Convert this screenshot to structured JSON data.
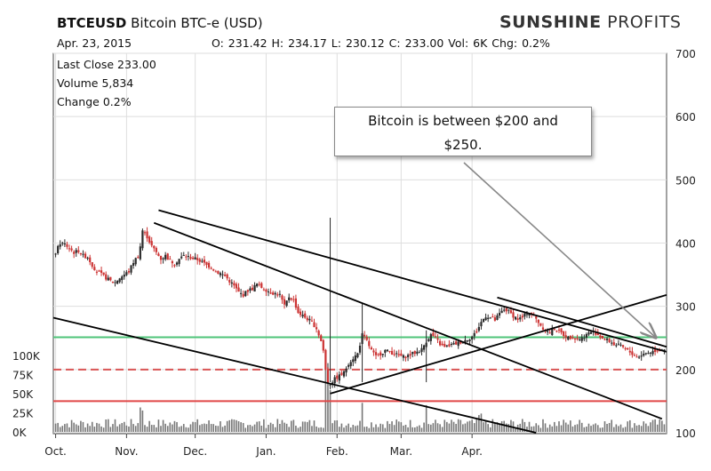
{
  "header": {
    "symbol": "BTCEUSD",
    "name": "Bitcoin BTC-e (USD)",
    "brand_bold": "SUNSHINE",
    "brand_light": "PROFITS",
    "date": "Apr. 23, 2015",
    "ohlc": "O: 231.42  H: 234.17  L: 230.12  C: 233.00  Vol: 6K  Chg: 0.2%"
  },
  "info": {
    "last_close": "Last Close 233.00",
    "volume": "Volume 5,834",
    "change": "Change 0.2%"
  },
  "callout": {
    "line1": "Bitcoin is between $200 and",
    "line2": "$250."
  },
  "chart_data": {
    "type": "candlestick",
    "x_tick_labels": [
      "Oct.",
      "Nov.",
      "Dec.",
      "Jan.",
      "Feb.",
      "Mar.",
      "Apr."
    ],
    "price_axis": {
      "ticks": [
        100,
        200,
        300,
        400,
        500,
        600,
        700
      ],
      "range": [
        100,
        700
      ]
    },
    "volume_axis": {
      "ticks": [
        "0K",
        "25K",
        "50K",
        "75K",
        "100K"
      ],
      "range": [
        0,
        100000
      ]
    },
    "grid": true,
    "horizontal_levels": [
      {
        "price": 251,
        "color": "#4fc47a",
        "style": "solid"
      },
      {
        "price": 200,
        "color": "#d95555",
        "style": "dashed"
      },
      {
        "price": 150,
        "color": "#e04848",
        "style": "solid"
      }
    ],
    "colors": {
      "up": "#2a2a2a",
      "down": "#cc3333",
      "volume": "#777777",
      "trendline": "#000000"
    },
    "close_series": [
      [
        0,
        385
      ],
      [
        2,
        400
      ],
      [
        4,
        398
      ],
      [
        6,
        392
      ],
      [
        8,
        385
      ],
      [
        10,
        388
      ],
      [
        12,
        380
      ],
      [
        14,
        378
      ],
      [
        16,
        365
      ],
      [
        18,
        355
      ],
      [
        20,
        350
      ],
      [
        22,
        345
      ],
      [
        24,
        340
      ],
      [
        26,
        338
      ],
      [
        28,
        345
      ],
      [
        30,
        350
      ],
      [
        32,
        355
      ],
      [
        34,
        370
      ],
      [
        36,
        380
      ],
      [
        37,
        395
      ],
      [
        38,
        420
      ],
      [
        40,
        410
      ],
      [
        42,
        395
      ],
      [
        44,
        385
      ],
      [
        46,
        375
      ],
      [
        48,
        380
      ],
      [
        50,
        372
      ],
      [
        52,
        368
      ],
      [
        54,
        375
      ],
      [
        56,
        380
      ],
      [
        58,
        378
      ],
      [
        60,
        376
      ],
      [
        62,
        374
      ],
      [
        64,
        370
      ],
      [
        66,
        365
      ],
      [
        68,
        362
      ],
      [
        70,
        355
      ],
      [
        72,
        352
      ],
      [
        74,
        348
      ],
      [
        76,
        340
      ],
      [
        78,
        332
      ],
      [
        80,
        322
      ],
      [
        82,
        318
      ],
      [
        84,
        325
      ],
      [
        86,
        328
      ],
      [
        88,
        335
      ],
      [
        90,
        330
      ],
      [
        92,
        326
      ],
      [
        94,
        322
      ],
      [
        96,
        320
      ],
      [
        98,
        318
      ],
      [
        100,
        300
      ],
      [
        102,
        315
      ],
      [
        104,
        310
      ],
      [
        106,
        290
      ],
      [
        108,
        285
      ],
      [
        110,
        280
      ],
      [
        112,
        275
      ],
      [
        114,
        265
      ],
      [
        116,
        245
      ],
      [
        117,
        230
      ],
      [
        118,
        200
      ],
      [
        119,
        180
      ],
      [
        120,
        178
      ],
      [
        122,
        185
      ],
      [
        124,
        190
      ],
      [
        126,
        195
      ],
      [
        128,
        210
      ],
      [
        130,
        218
      ],
      [
        132,
        225
      ],
      [
        134,
        255
      ],
      [
        136,
        245
      ],
      [
        138,
        230
      ],
      [
        140,
        220
      ],
      [
        142,
        225
      ],
      [
        144,
        230
      ],
      [
        146,
        228
      ],
      [
        148,
        225
      ],
      [
        150,
        222
      ],
      [
        152,
        220
      ],
      [
        154,
        222
      ],
      [
        156,
        225
      ],
      [
        158,
        228
      ],
      [
        160,
        232
      ],
      [
        162,
        245
      ],
      [
        164,
        255
      ],
      [
        166,
        250
      ],
      [
        168,
        240
      ],
      [
        170,
        235
      ],
      [
        172,
        238
      ],
      [
        174,
        240
      ],
      [
        176,
        242
      ],
      [
        178,
        245
      ],
      [
        180,
        248
      ],
      [
        182,
        252
      ],
      [
        184,
        260
      ],
      [
        186,
        275
      ],
      [
        188,
        285
      ],
      [
        190,
        282
      ],
      [
        192,
        278
      ],
      [
        194,
        288
      ],
      [
        196,
        295
      ],
      [
        198,
        292
      ],
      [
        200,
        285
      ],
      [
        202,
        280
      ],
      [
        204,
        282
      ],
      [
        206,
        290
      ],
      [
        208,
        288
      ],
      [
        210,
        280
      ],
      [
        212,
        270
      ],
      [
        214,
        262
      ],
      [
        216,
        258
      ],
      [
        218,
        265
      ],
      [
        220,
        260
      ],
      [
        222,
        255
      ],
      [
        224,
        250
      ],
      [
        226,
        252
      ],
      [
        228,
        248
      ],
      [
        230,
        250
      ],
      [
        232,
        255
      ],
      [
        234,
        260
      ],
      [
        236,
        258
      ],
      [
        238,
        252
      ],
      [
        240,
        248
      ],
      [
        242,
        245
      ],
      [
        244,
        240
      ],
      [
        246,
        238
      ],
      [
        248,
        235
      ],
      [
        250,
        230
      ],
      [
        252,
        225
      ],
      [
        254,
        220
      ],
      [
        256,
        223
      ],
      [
        258,
        226
      ],
      [
        260,
        228
      ],
      [
        262,
        230
      ],
      [
        264,
        232
      ],
      [
        266,
        233
      ]
    ],
    "trendlines": [
      {
        "from": [
          45,
          452
        ],
        "to": [
          267,
          228
        ]
      },
      {
        "from": [
          43,
          432
        ],
        "to": [
          265,
          122
        ]
      },
      {
        "from": [
          -1,
          282
        ],
        "to": [
          210,
          100
        ]
      },
      {
        "from": [
          120,
          162
        ],
        "to": [
          267,
          318
        ]
      },
      {
        "from": [
          193,
          314
        ],
        "to": [
          267,
          236
        ]
      }
    ]
  }
}
